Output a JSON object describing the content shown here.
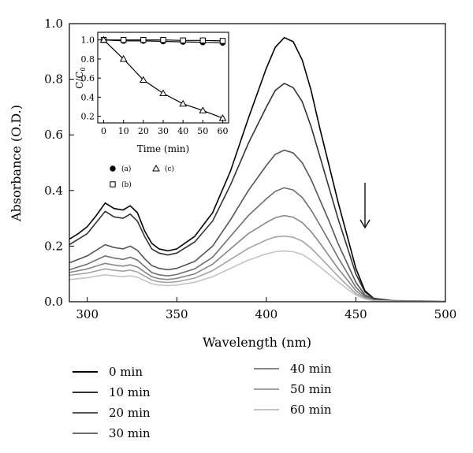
{
  "chart_data": {
    "main": {
      "type": "line",
      "xlabel": "Wavelength (nm)",
      "ylabel": "Absorbance (O.D.)",
      "xlim": [
        290,
        500
      ],
      "ylim": [
        0,
        1.0
      ],
      "xticks": [
        "300",
        "350",
        "400",
        "450",
        "500"
      ],
      "yticks": [
        "0.0",
        "0.2",
        "0.4",
        "0.6",
        "0.8",
        "1.0"
      ],
      "grid": false,
      "legend_position": "below",
      "annotation": "downward arrow at ~455 nm indicating decreasing absorbance with time",
      "series": [
        {
          "name": "0 min",
          "color": "#000000",
          "points": [
            [
              290,
              0.225
            ],
            [
              295,
              0.245
            ],
            [
              300,
              0.27
            ],
            [
              305,
              0.31
            ],
            [
              310,
              0.355
            ],
            [
              315,
              0.335
            ],
            [
              320,
              0.33
            ],
            [
              324,
              0.345
            ],
            [
              328,
              0.32
            ],
            [
              332,
              0.255
            ],
            [
              336,
              0.21
            ],
            [
              340,
              0.19
            ],
            [
              345,
              0.183
            ],
            [
              350,
              0.19
            ],
            [
              360,
              0.235
            ],
            [
              370,
              0.32
            ],
            [
              380,
              0.47
            ],
            [
              390,
              0.66
            ],
            [
              400,
              0.84
            ],
            [
              405,
              0.915
            ],
            [
              410,
              0.95
            ],
            [
              415,
              0.935
            ],
            [
              420,
              0.87
            ],
            [
              425,
              0.76
            ],
            [
              430,
              0.62
            ],
            [
              435,
              0.49
            ],
            [
              440,
              0.36
            ],
            [
              445,
              0.24
            ],
            [
              450,
              0.12
            ],
            [
              455,
              0.04
            ],
            [
              460,
              0.012
            ],
            [
              470,
              0.004
            ],
            [
              480,
              0.002
            ],
            [
              500,
              0.002
            ]
          ]
        },
        {
          "name": "10 min",
          "color": "#333333",
          "points": [
            [
              290,
              0.205
            ],
            [
              300,
              0.245
            ],
            [
              310,
              0.325
            ],
            [
              315,
              0.305
            ],
            [
              320,
              0.3
            ],
            [
              324,
              0.315
            ],
            [
              328,
              0.29
            ],
            [
              332,
              0.235
            ],
            [
              336,
              0.19
            ],
            [
              340,
              0.175
            ],
            [
              345,
              0.168
            ],
            [
              350,
              0.175
            ],
            [
              360,
              0.215
            ],
            [
              370,
              0.29
            ],
            [
              380,
              0.42
            ],
            [
              390,
              0.57
            ],
            [
              400,
              0.7
            ],
            [
              405,
              0.76
            ],
            [
              410,
              0.785
            ],
            [
              415,
              0.77
            ],
            [
              420,
              0.72
            ],
            [
              425,
              0.63
            ],
            [
              430,
              0.52
            ],
            [
              435,
              0.41
            ],
            [
              440,
              0.3
            ],
            [
              445,
              0.2
            ],
            [
              450,
              0.1
            ],
            [
              455,
              0.035
            ],
            [
              460,
              0.01
            ],
            [
              470,
              0.004
            ],
            [
              500,
              0.002
            ]
          ]
        },
        {
          "name": "20 min",
          "color": "#555555",
          "points": [
            [
              290,
              0.14
            ],
            [
              300,
              0.165
            ],
            [
              310,
              0.205
            ],
            [
              315,
              0.195
            ],
            [
              320,
              0.19
            ],
            [
              324,
              0.2
            ],
            [
              328,
              0.185
            ],
            [
              332,
              0.155
            ],
            [
              336,
              0.13
            ],
            [
              340,
              0.12
            ],
            [
              345,
              0.115
            ],
            [
              350,
              0.12
            ],
            [
              360,
              0.145
            ],
            [
              370,
              0.2
            ],
            [
              380,
              0.295
            ],
            [
              390,
              0.4
            ],
            [
              400,
              0.49
            ],
            [
              405,
              0.53
            ],
            [
              410,
              0.545
            ],
            [
              415,
              0.535
            ],
            [
              420,
              0.5
            ],
            [
              425,
              0.44
            ],
            [
              430,
              0.365
            ],
            [
              435,
              0.29
            ],
            [
              440,
              0.21
            ],
            [
              445,
              0.14
            ],
            [
              450,
              0.07
            ],
            [
              455,
              0.025
            ],
            [
              460,
              0.008
            ],
            [
              470,
              0.003
            ],
            [
              500,
              0.002
            ]
          ]
        },
        {
          "name": "30 min",
          "color": "#6f6f6f",
          "points": [
            [
              290,
              0.115
            ],
            [
              300,
              0.135
            ],
            [
              310,
              0.165
            ],
            [
              315,
              0.157
            ],
            [
              320,
              0.152
            ],
            [
              324,
              0.16
            ],
            [
              328,
              0.15
            ],
            [
              332,
              0.127
            ],
            [
              336,
              0.105
            ],
            [
              340,
              0.097
            ],
            [
              345,
              0.093
            ],
            [
              350,
              0.098
            ],
            [
              360,
              0.118
            ],
            [
              370,
              0.16
            ],
            [
              380,
              0.235
            ],
            [
              390,
              0.31
            ],
            [
              400,
              0.37
            ],
            [
              405,
              0.397
            ],
            [
              410,
              0.41
            ],
            [
              415,
              0.402
            ],
            [
              420,
              0.375
            ],
            [
              425,
              0.33
            ],
            [
              430,
              0.275
            ],
            [
              435,
              0.218
            ],
            [
              440,
              0.16
            ],
            [
              445,
              0.105
            ],
            [
              450,
              0.052
            ],
            [
              455,
              0.02
            ],
            [
              460,
              0.006
            ],
            [
              470,
              0.002
            ],
            [
              500,
              0.002
            ]
          ]
        },
        {
          "name": "40 min",
          "color": "#888888",
          "points": [
            [
              290,
              0.105
            ],
            [
              300,
              0.118
            ],
            [
              310,
              0.138
            ],
            [
              315,
              0.132
            ],
            [
              320,
              0.128
            ],
            [
              324,
              0.133
            ],
            [
              328,
              0.125
            ],
            [
              332,
              0.107
            ],
            [
              336,
              0.09
            ],
            [
              340,
              0.083
            ],
            [
              345,
              0.08
            ],
            [
              350,
              0.084
            ],
            [
              360,
              0.1
            ],
            [
              370,
              0.135
            ],
            [
              380,
              0.19
            ],
            [
              390,
              0.245
            ],
            [
              400,
              0.285
            ],
            [
              405,
              0.302
            ],
            [
              410,
              0.31
            ],
            [
              415,
              0.304
            ],
            [
              420,
              0.285
            ],
            [
              425,
              0.252
            ],
            [
              430,
              0.21
            ],
            [
              435,
              0.165
            ],
            [
              440,
              0.12
            ],
            [
              445,
              0.08
            ],
            [
              450,
              0.04
            ],
            [
              455,
              0.015
            ],
            [
              460,
              0.005
            ],
            [
              470,
              0.002
            ],
            [
              500,
              0.002
            ]
          ]
        },
        {
          "name": "50 min",
          "color": "#a3a3a3",
          "points": [
            [
              290,
              0.095
            ],
            [
              300,
              0.103
            ],
            [
              310,
              0.118
            ],
            [
              315,
              0.113
            ],
            [
              320,
              0.11
            ],
            [
              324,
              0.114
            ],
            [
              328,
              0.107
            ],
            [
              332,
              0.092
            ],
            [
              336,
              0.078
            ],
            [
              340,
              0.072
            ],
            [
              345,
              0.069
            ],
            [
              350,
              0.072
            ],
            [
              360,
              0.085
            ],
            [
              370,
              0.112
            ],
            [
              380,
              0.152
            ],
            [
              390,
              0.192
            ],
            [
              400,
              0.222
            ],
            [
              405,
              0.233
            ],
            [
              410,
              0.236
            ],
            [
              415,
              0.232
            ],
            [
              420,
              0.218
            ],
            [
              425,
              0.193
            ],
            [
              430,
              0.16
            ],
            [
              435,
              0.126
            ],
            [
              440,
              0.092
            ],
            [
              445,
              0.06
            ],
            [
              450,
              0.03
            ],
            [
              455,
              0.012
            ],
            [
              460,
              0.004
            ],
            [
              470,
              0.002
            ],
            [
              500,
              0.002
            ]
          ]
        },
        {
          "name": "60 min",
          "color": "#c4c4c4",
          "points": [
            [
              290,
              0.08
            ],
            [
              300,
              0.086
            ],
            [
              310,
              0.097
            ],
            [
              315,
              0.093
            ],
            [
              320,
              0.09
            ],
            [
              324,
              0.093
            ],
            [
              328,
              0.088
            ],
            [
              332,
              0.076
            ],
            [
              336,
              0.065
            ],
            [
              340,
              0.06
            ],
            [
              345,
              0.058
            ],
            [
              350,
              0.06
            ],
            [
              360,
              0.07
            ],
            [
              370,
              0.09
            ],
            [
              380,
              0.12
            ],
            [
              390,
              0.15
            ],
            [
              400,
              0.172
            ],
            [
              405,
              0.18
            ],
            [
              410,
              0.183
            ],
            [
              415,
              0.18
            ],
            [
              420,
              0.17
            ],
            [
              425,
              0.15
            ],
            [
              430,
              0.125
            ],
            [
              435,
              0.098
            ],
            [
              440,
              0.072
            ],
            [
              445,
              0.047
            ],
            [
              450,
              0.024
            ],
            [
              455,
              0.01
            ],
            [
              460,
              0.003
            ],
            [
              470,
              0.002
            ],
            [
              500,
              0.002
            ]
          ]
        }
      ]
    },
    "inset": {
      "type": "scatter",
      "xlabel": "Time (min)",
      "ylabel": "C/C0",
      "xlim": [
        -3,
        63
      ],
      "ylim": [
        0.13,
        1.08
      ],
      "xticks": [
        "0",
        "10",
        "20",
        "30",
        "40",
        "50",
        "60"
      ],
      "yticks": [
        "0.2",
        "0.4",
        "0.6",
        "0.8",
        "1.0"
      ],
      "series": [
        {
          "name": "(a)",
          "marker": "filled-circle",
          "x": [
            0,
            10,
            20,
            30,
            40,
            50,
            60
          ],
          "y": [
            1.0,
            0.99,
            0.99,
            0.985,
            0.98,
            0.975,
            0.97
          ]
        },
        {
          "name": "(b)",
          "marker": "open-square",
          "x": [
            0,
            10,
            20,
            30,
            40,
            50,
            60
          ],
          "y": [
            1.0,
            1.0,
            1.0,
            1.0,
            0.995,
            0.995,
            0.99
          ]
        },
        {
          "name": "(c)",
          "marker": "open-triangle",
          "x": [
            0,
            10,
            20,
            30,
            40,
            50,
            60
          ],
          "y": [
            1.0,
            0.8,
            0.58,
            0.44,
            0.33,
            0.26,
            0.18
          ]
        }
      ]
    }
  }
}
